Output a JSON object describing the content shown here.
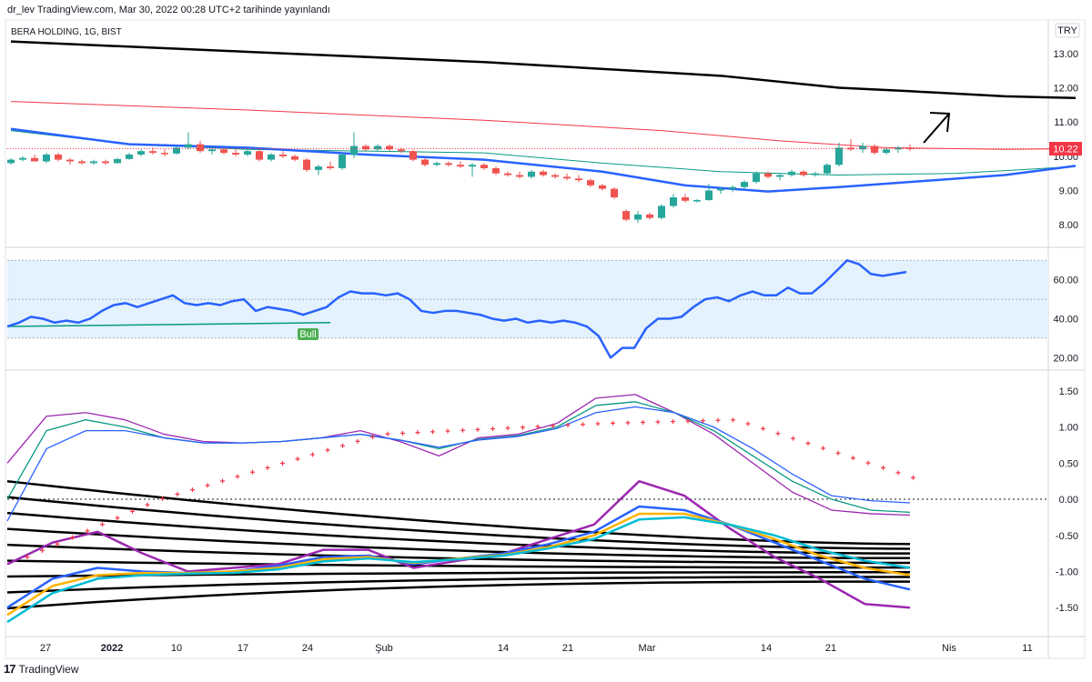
{
  "header": {
    "author": "dr_lev",
    "published": "TradingView.com, Mar 30, 2022 00:28 UTC+2 tarihinde yayınlandı"
  },
  "symbol_line": "BERA HOLDING, 1G, BIST",
  "currency_badge": "TRY",
  "last_price_label": "10.22",
  "bull_label": "Bull",
  "footer": {
    "logo_text": "TradingView"
  },
  "colors": {
    "up_candle": "#26a69a",
    "down_candle": "#ef5350",
    "ma_blue": "#2962ff",
    "ma_teal": "#089981",
    "ma_red": "#f23645",
    "ma_black": "#000000",
    "rsi_line": "#2962ff",
    "rsi_band": "#e3f2fd",
    "macd_purple": "#9c27b0",
    "psar_red": "#f23645",
    "ribbon_orange": "#ffb300",
    "ribbon_cyan": "#00bcd4"
  },
  "chart_data": [
    {
      "panel": "price",
      "type": "candlestick",
      "x_labels": [
        "27",
        "2022",
        "10",
        "17",
        "24",
        "Şub",
        "14",
        "21",
        "Mar",
        "14",
        "21",
        "Nis",
        "11"
      ],
      "y_ticks": [
        "13.00",
        "12.00",
        "11.00",
        "10.00",
        "9.00",
        "8.00"
      ],
      "ylim": [
        7.5,
        13.5
      ],
      "last_price": 10.22,
      "candles": [
        [
          9.8,
          9.95,
          9.75,
          9.9
        ],
        [
          9.9,
          10.0,
          9.85,
          9.95
        ],
        [
          9.95,
          10.05,
          9.85,
          9.85
        ],
        [
          9.85,
          10.1,
          9.8,
          10.05
        ],
        [
          10.05,
          10.1,
          9.85,
          9.9
        ],
        [
          9.9,
          9.95,
          9.75,
          9.85
        ],
        [
          9.85,
          9.9,
          9.75,
          9.8
        ],
        [
          9.8,
          9.9,
          9.75,
          9.85
        ],
        [
          9.85,
          9.9,
          9.75,
          9.8
        ],
        [
          9.8,
          9.95,
          9.78,
          9.92
        ],
        [
          9.92,
          10.1,
          9.9,
          10.05
        ],
        [
          10.05,
          10.2,
          10.0,
          10.15
        ],
        [
          10.15,
          10.25,
          10.05,
          10.1
        ],
        [
          10.1,
          10.2,
          10.0,
          10.08
        ],
        [
          10.08,
          10.3,
          10.05,
          10.25
        ],
        [
          10.25,
          10.7,
          10.2,
          10.35
        ],
        [
          10.35,
          10.45,
          10.1,
          10.15
        ],
        [
          10.15,
          10.25,
          10.05,
          10.2
        ],
        [
          10.2,
          10.25,
          10.05,
          10.1
        ],
        [
          10.1,
          10.2,
          10.0,
          10.05
        ],
        [
          10.05,
          10.2,
          10.0,
          10.15
        ],
        [
          10.15,
          10.2,
          9.85,
          9.9
        ],
        [
          9.9,
          10.1,
          9.85,
          10.05
        ],
        [
          10.05,
          10.15,
          9.95,
          10.0
        ],
        [
          10.0,
          10.05,
          9.85,
          9.9
        ],
        [
          9.9,
          9.95,
          9.55,
          9.6
        ],
        [
          9.6,
          9.75,
          9.45,
          9.7
        ],
        [
          9.7,
          9.85,
          9.6,
          9.65
        ],
        [
          9.65,
          10.1,
          9.6,
          10.05
        ],
        [
          10.05,
          10.7,
          9.95,
          10.3
        ],
        [
          10.3,
          10.35,
          10.15,
          10.2
        ],
        [
          10.2,
          10.35,
          10.15,
          10.3
        ],
        [
          10.3,
          10.35,
          10.15,
          10.2
        ],
        [
          10.2,
          10.25,
          10.1,
          10.15
        ],
        [
          10.15,
          10.2,
          9.85,
          9.9
        ],
        [
          9.9,
          9.95,
          9.7,
          9.75
        ],
        [
          9.75,
          9.85,
          9.7,
          9.8
        ],
        [
          9.8,
          9.85,
          9.7,
          9.75
        ],
        [
          9.75,
          9.85,
          9.65,
          9.7
        ],
        [
          9.7,
          9.8,
          9.4,
          9.75
        ],
        [
          9.75,
          9.8,
          9.6,
          9.65
        ],
        [
          9.65,
          9.7,
          9.45,
          9.5
        ],
        [
          9.5,
          9.55,
          9.4,
          9.45
        ],
        [
          9.45,
          9.55,
          9.35,
          9.4
        ],
        [
          9.4,
          9.6,
          9.35,
          9.55
        ],
        [
          9.55,
          9.6,
          9.4,
          9.45
        ],
        [
          9.45,
          9.5,
          9.35,
          9.4
        ],
        [
          9.4,
          9.5,
          9.3,
          9.35
        ],
        [
          9.35,
          9.45,
          9.25,
          9.3
        ],
        [
          9.3,
          9.35,
          9.1,
          9.15
        ],
        [
          9.15,
          9.2,
          9.0,
          9.05
        ],
        [
          9.05,
          9.1,
          8.75,
          8.8
        ],
        [
          8.4,
          8.45,
          8.1,
          8.15
        ],
        [
          8.15,
          8.4,
          8.05,
          8.3
        ],
        [
          8.3,
          8.35,
          8.15,
          8.2
        ],
        [
          8.2,
          8.6,
          8.15,
          8.55
        ],
        [
          8.55,
          8.9,
          8.5,
          8.8
        ],
        [
          8.8,
          8.9,
          8.65,
          8.7
        ],
        [
          8.7,
          8.75,
          8.65,
          8.72
        ],
        [
          8.72,
          9.2,
          8.7,
          9.0
        ],
        [
          9.0,
          9.1,
          8.9,
          9.05
        ],
        [
          9.05,
          9.15,
          8.95,
          9.1
        ],
        [
          9.1,
          9.3,
          9.05,
          9.25
        ],
        [
          9.25,
          9.55,
          9.2,
          9.5
        ],
        [
          9.5,
          9.55,
          9.35,
          9.4
        ],
        [
          9.4,
          9.5,
          9.3,
          9.45
        ],
        [
          9.45,
          9.6,
          9.4,
          9.55
        ],
        [
          9.55,
          9.6,
          9.4,
          9.45
        ],
        [
          9.45,
          9.55,
          9.4,
          9.5
        ],
        [
          9.5,
          9.8,
          9.45,
          9.75
        ],
        [
          9.75,
          10.4,
          9.7,
          10.25
        ],
        [
          10.25,
          10.5,
          10.15,
          10.2
        ],
        [
          10.2,
          10.4,
          10.1,
          10.3
        ],
        [
          10.3,
          10.35,
          10.05,
          10.1
        ],
        [
          10.1,
          10.25,
          10.05,
          10.2
        ],
        [
          10.2,
          10.3,
          10.1,
          10.25
        ],
        [
          10.25,
          10.35,
          10.15,
          10.22
        ]
      ],
      "lines": [
        {
          "name": "ma-black",
          "color": "#000000",
          "width": 2.5,
          "points": [
            [
              0,
              13.35
            ],
            [
              20,
              13.05
            ],
            [
              40,
              12.75
            ],
            [
              60,
              12.35
            ],
            [
              70,
              12.0
            ],
            [
              76,
              11.9
            ],
            [
              84,
              11.75
            ],
            [
              90,
              11.7
            ]
          ]
        },
        {
          "name": "ma-red",
          "color": "#f23645",
          "width": 1,
          "points": [
            [
              0,
              11.6
            ],
            [
              20,
              11.35
            ],
            [
              40,
              11.05
            ],
            [
              55,
              10.75
            ],
            [
              65,
              10.45
            ],
            [
              74,
              10.25
            ],
            [
              84,
              10.2
            ],
            [
              90,
              10.22
            ]
          ]
        },
        {
          "name": "ma-teal",
          "color": "#089981",
          "width": 1,
          "points": [
            [
              0,
              10.75
            ],
            [
              10,
              10.35
            ],
            [
              20,
              10.2
            ],
            [
              30,
              10.15
            ],
            [
              40,
              10.1
            ],
            [
              50,
              9.8
            ],
            [
              60,
              9.55
            ],
            [
              70,
              9.45
            ],
            [
              80,
              9.5
            ],
            [
              90,
              9.7
            ]
          ]
        },
        {
          "name": "ma-blue",
          "color": "#2962ff",
          "width": 2.5,
          "points": [
            [
              0,
              10.8
            ],
            [
              10,
              10.35
            ],
            [
              20,
              10.25
            ],
            [
              30,
              10.05
            ],
            [
              40,
              9.9
            ],
            [
              50,
              9.55
            ],
            [
              57,
              9.15
            ],
            [
              64,
              8.97
            ],
            [
              70,
              9.1
            ],
            [
              78,
              9.3
            ],
            [
              84,
              9.45
            ],
            [
              90,
              9.72
            ]
          ]
        }
      ],
      "annotation": "arrow up-right"
    },
    {
      "panel": "rsi",
      "type": "line",
      "y_ticks": [
        "60.00",
        "40.00",
        "20.00"
      ],
      "ylim": [
        15,
        72
      ],
      "band": [
        30,
        70
      ],
      "levels": [
        30,
        50,
        70
      ],
      "values": [
        36,
        38,
        41,
        40,
        38,
        39,
        38,
        40,
        44,
        47,
        48,
        46,
        48,
        50,
        52,
        48,
        47,
        48,
        47,
        49,
        50,
        44,
        46,
        45,
        44,
        42,
        44,
        46,
        51,
        54,
        53,
        53,
        52,
        53,
        50,
        44,
        43,
        44,
        44,
        43,
        42,
        40,
        39,
        40,
        38,
        39,
        38,
        39,
        38,
        36,
        31,
        20,
        25,
        25,
        35,
        40,
        40,
        41,
        46,
        50,
        51,
        49,
        52,
        54,
        52,
        52,
        56,
        53,
        53,
        58,
        64,
        70,
        68,
        63,
        62,
        63,
        64
      ],
      "divergence_line": {
        "from": [
          0,
          36
        ],
        "to": [
          27,
          38
        ]
      }
    },
    {
      "panel": "macd",
      "type": "line",
      "y_ticks": [
        "1.50",
        "1.00",
        "0.50",
        "0.00",
        "-0.50",
        "-1.00",
        "-1.50"
      ],
      "ylim": [
        -1.85,
        1.65
      ],
      "series": [
        {
          "name": "macd-purple",
          "color": "#9c27b0",
          "values": [
            0.5,
            1.15,
            1.2,
            1.1,
            0.9,
            0.8,
            0.78,
            0.8,
            0.85,
            0.95,
            0.8,
            0.6,
            0.85,
            0.9,
            1.05,
            1.4,
            1.45,
            1.2,
            0.9,
            0.5,
            0.1,
            -0.15,
            -0.2,
            -0.22
          ]
        },
        {
          "name": "macd-teal",
          "color": "#089981",
          "values": [
            0.0,
            0.95,
            1.1,
            1.0,
            0.85,
            0.78,
            0.78,
            0.8,
            0.85,
            0.9,
            0.82,
            0.7,
            0.83,
            0.88,
            1.0,
            1.3,
            1.35,
            1.2,
            0.95,
            0.6,
            0.25,
            0.0,
            -0.15,
            -0.18
          ]
        },
        {
          "name": "macd-blue",
          "color": "#2962ff",
          "values": [
            -0.3,
            0.7,
            0.95,
            0.95,
            0.85,
            0.78,
            0.78,
            0.8,
            0.85,
            0.9,
            0.82,
            0.72,
            0.82,
            0.87,
            0.98,
            1.2,
            1.28,
            1.2,
            1.0,
            0.7,
            0.35,
            0.05,
            -0.02,
            -0.05
          ]
        }
      ],
      "psar": [
        0.6,
        0.7,
        0.8,
        0.9,
        1.0,
        1.0,
        1.1,
        1.05,
        0.95,
        0.8,
        0.7,
        0.5,
        0.4
      ]
    }
  ]
}
